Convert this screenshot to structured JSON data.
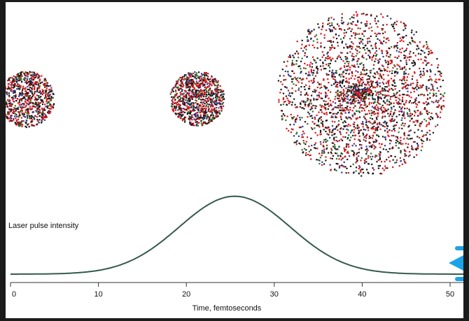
{
  "figure": {
    "ylabel": "Laser pulse intensity",
    "xlabel": "Time, femtoseconds",
    "ticks": [
      "0",
      "10",
      "20",
      "30",
      "40",
      "50"
    ],
    "tick_values": [
      0,
      10,
      20,
      30,
      40,
      50
    ]
  },
  "pulse": {
    "peak_time_fs": 25.5,
    "sigma_fs": 6.3,
    "baseline_fraction": 0.04
  },
  "clusters": [
    {
      "name": "cluster-intact",
      "stage": "initial",
      "dots": 800
    },
    {
      "name": "cluster-expanding",
      "stage": "peak",
      "dots": 900
    },
    {
      "name": "cluster-exploded",
      "stage": "late",
      "dots": 2400
    }
  ],
  "colors": {
    "page_background": "#1b1b1b",
    "panel": "#ffffff",
    "curve": "#355a4b",
    "axis": "#333333",
    "arrow": "#1aa3e8",
    "particles": [
      "#d7191c",
      "#1a1a1a",
      "#2c7a2c",
      "#2b3a9e"
    ]
  },
  "overlay": {
    "arrow_icon": "arrow-left-icon"
  }
}
